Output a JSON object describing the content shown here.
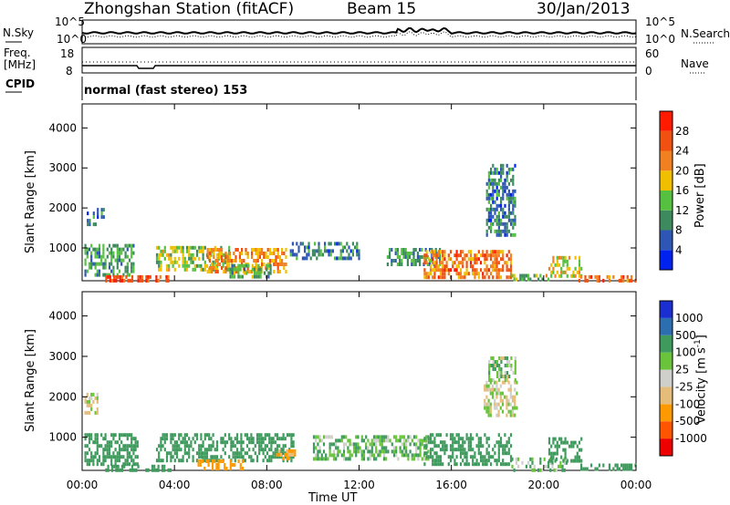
{
  "header": {
    "station": "Zhongshan Station (fitACF)",
    "beam": "Beam 15",
    "date": "30/Jan/2013"
  },
  "top_panel": {
    "nsky_label": "N.Sky",
    "nsearch_label": "N.Search",
    "freq_label_line1": "Freq.",
    "freq_label_line2": "[MHz]",
    "cpid_label": "CPID",
    "nave_label": "Nave",
    "noise_ticks": [
      "10^5",
      "10^0"
    ],
    "freq_ticks": [
      "18",
      "8"
    ],
    "nave_ticks": [
      "60",
      "0"
    ],
    "cpid_text": "normal (fast stereo) 153"
  },
  "colors": {
    "power_scale": [
      "#0022ee",
      "#2e56b4",
      "#3d8a5e",
      "#56c040",
      "#f0c000",
      "#f08020",
      "#f05010",
      "#ff1a00"
    ],
    "velocity_scale": [
      "#ee0000",
      "#ff5500",
      "#ff9900",
      "#e6bc7a",
      "#cfcfcc",
      "#69c43c",
      "#3f9a5e",
      "#2d6eb0",
      "#1a2ed2"
    ]
  },
  "chart_data": [
    {
      "type": "heatmap",
      "name": "power",
      "title": "",
      "xlabel": "Time UT",
      "ylabel": "Slant Range [km]",
      "xlim": [
        0,
        24
      ],
      "ylim": [
        180,
        4600
      ],
      "x_ticks": [
        "00:00",
        "04:00",
        "08:00",
        "12:00",
        "16:00",
        "20:00",
        "00:00"
      ],
      "y_ticks": [
        "1000",
        "2000",
        "3000",
        "4000"
      ],
      "colorbar": {
        "label": "Power [dB]",
        "ticks": [
          "4",
          "8",
          "12",
          "16",
          "20",
          "24",
          "28"
        ],
        "range": [
          0,
          30
        ]
      },
      "echo_regions": [
        {
          "t0": 0.1,
          "t1": 2.2,
          "r0": 300,
          "r1": 1100,
          "value": 10
        },
        {
          "t0": 0.2,
          "t1": 0.9,
          "r0": 1600,
          "r1": 2000,
          "value": 8
        },
        {
          "t0": 1.0,
          "t1": 3.8,
          "r0": 220,
          "r1": 320,
          "value": 26
        },
        {
          "t0": 3.2,
          "t1": 6.4,
          "r0": 450,
          "r1": 1050,
          "value": 14
        },
        {
          "t0": 5.4,
          "t1": 8.8,
          "r0": 450,
          "r1": 1000,
          "value": 20
        },
        {
          "t0": 6.3,
          "t1": 8.2,
          "r0": 300,
          "r1": 600,
          "value": 12
        },
        {
          "t0": 9.0,
          "t1": 12.0,
          "r0": 700,
          "r1": 1150,
          "value": 8
        },
        {
          "t0": 13.2,
          "t1": 15.5,
          "r0": 550,
          "r1": 1000,
          "value": 10
        },
        {
          "t0": 14.8,
          "t1": 18.6,
          "r0": 300,
          "r1": 950,
          "value": 22
        },
        {
          "t0": 17.5,
          "t1": 18.8,
          "r0": 1300,
          "r1": 3100,
          "value": 8
        },
        {
          "t0": 18.6,
          "t1": 20.2,
          "r0": 180,
          "r1": 350,
          "value": 14
        },
        {
          "t0": 20.2,
          "t1": 21.6,
          "r0": 300,
          "r1": 800,
          "value": 16
        },
        {
          "t0": 21.5,
          "t1": 24.0,
          "r0": 180,
          "r1": 320,
          "value": 22
        }
      ]
    },
    {
      "type": "heatmap",
      "name": "velocity",
      "title": "",
      "xlabel": "Time UT",
      "ylabel": "Slant Range [km]",
      "xlim": [
        0,
        24
      ],
      "ylim": [
        180,
        4600
      ],
      "x_ticks": [
        "00:00",
        "04:00",
        "08:00",
        "12:00",
        "16:00",
        "20:00",
        "00:00"
      ],
      "y_ticks": [
        "1000",
        "2000",
        "3000",
        "4000"
      ],
      "colorbar": {
        "label": "Velocity [m s",
        "label_sup": "-1",
        "label_end": "]",
        "ticks": [
          "-1000",
          "-500",
          "-100",
          "-25",
          "25",
          "100",
          "500",
          "1000"
        ]
      },
      "echo_regions": [
        {
          "t0": 0.1,
          "t1": 2.4,
          "r0": 300,
          "r1": 1100,
          "value": 200
        },
        {
          "t0": 0.1,
          "t1": 0.7,
          "r0": 1600,
          "r1": 2100,
          "value": 0
        },
        {
          "t0": 1.0,
          "t1": 3.8,
          "r0": 220,
          "r1": 320,
          "value": 200
        },
        {
          "t0": 3.2,
          "t1": 9.2,
          "r0": 400,
          "r1": 1100,
          "value": 200
        },
        {
          "t0": 5.0,
          "t1": 7.0,
          "r0": 250,
          "r1": 450,
          "value": -200
        },
        {
          "t0": 8.4,
          "t1": 9.2,
          "r0": 500,
          "r1": 700,
          "value": -150
        },
        {
          "t0": 10.0,
          "t1": 15.0,
          "r0": 450,
          "r1": 1050,
          "value": 90
        },
        {
          "t0": 14.8,
          "t1": 18.6,
          "r0": 300,
          "r1": 1100,
          "value": 200
        },
        {
          "t0": 17.4,
          "t1": 18.8,
          "r0": 1500,
          "r1": 2400,
          "value": 0
        },
        {
          "t0": 17.6,
          "t1": 18.8,
          "r0": 2400,
          "r1": 3000,
          "value": 60
        },
        {
          "t0": 18.6,
          "t1": 21.0,
          "r0": 180,
          "r1": 500,
          "value": 90
        },
        {
          "t0": 20.2,
          "t1": 21.6,
          "r0": 400,
          "r1": 1000,
          "value": 200
        },
        {
          "t0": 21.5,
          "t1": 24.0,
          "r0": 180,
          "r1": 350,
          "value": 200
        }
      ]
    }
  ]
}
